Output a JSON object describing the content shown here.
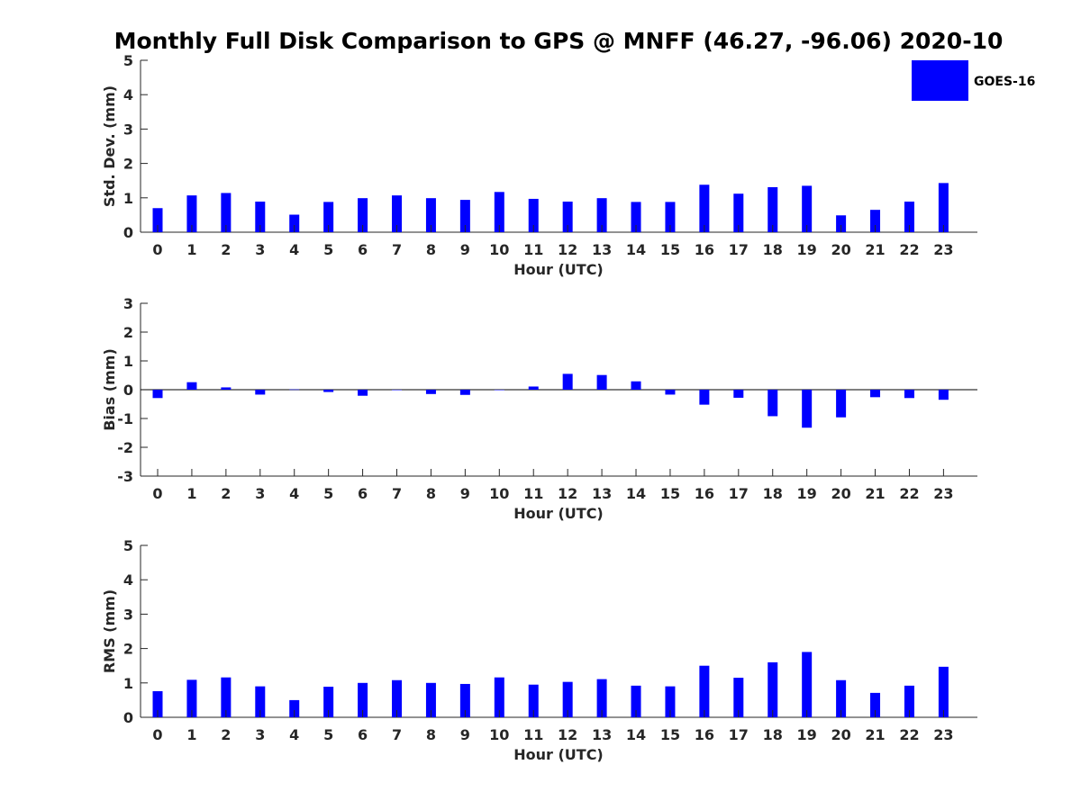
{
  "title": "Monthly Full Disk Comparison to GPS @ MNFF (46.27, -96.06) 2020-10",
  "colors": {
    "bar": "#0000ff",
    "axis": "#262626",
    "background": "#ffffff"
  },
  "chart_data": [
    {
      "type": "bar",
      "id": "stddev",
      "ylabel": "Std. Dev. (mm)",
      "xlabel": "Hour (UTC)",
      "ylim": [
        0,
        5
      ],
      "yticks": [
        "0",
        "1",
        "2",
        "3",
        "4",
        "5"
      ],
      "categories": [
        "0",
        "1",
        "2",
        "3",
        "4",
        "5",
        "6",
        "7",
        "8",
        "9",
        "10",
        "11",
        "12",
        "13",
        "14",
        "15",
        "16",
        "17",
        "18",
        "19",
        "20",
        "21",
        "22",
        "23"
      ],
      "series": [
        {
          "name": "GOES-16",
          "values": [
            0.7,
            1.07,
            1.14,
            0.89,
            0.51,
            0.88,
            0.99,
            1.07,
            0.99,
            0.94,
            1.17,
            0.97,
            0.89,
            0.99,
            0.88,
            0.88,
            1.38,
            1.12,
            1.31,
            1.35,
            0.49,
            0.65,
            0.89,
            1.43
          ]
        }
      ],
      "legend": {
        "label": "GOES-16",
        "position": "top-right"
      }
    },
    {
      "type": "bar",
      "id": "bias",
      "ylabel": "Bias (mm)",
      "xlabel": "Hour (UTC)",
      "ylim": [
        -3,
        3
      ],
      "yticks": [
        "-3",
        "-2",
        "-1",
        "0",
        "1",
        "2",
        "3"
      ],
      "zero_line": true,
      "categories": [
        "0",
        "1",
        "2",
        "3",
        "4",
        "5",
        "6",
        "7",
        "8",
        "9",
        "10",
        "11",
        "12",
        "13",
        "14",
        "15",
        "16",
        "17",
        "18",
        "19",
        "20",
        "21",
        "22",
        "23"
      ],
      "series": [
        {
          "name": "GOES-16",
          "values": [
            -0.29,
            0.26,
            0.08,
            -0.17,
            0.01,
            -0.08,
            -0.21,
            0.0,
            -0.15,
            -0.18,
            0.0,
            0.11,
            0.55,
            0.51,
            0.29,
            -0.17,
            -0.52,
            -0.28,
            -0.92,
            -1.32,
            -0.96,
            -0.26,
            -0.29,
            -0.35
          ]
        }
      ]
    },
    {
      "type": "bar",
      "id": "rms",
      "ylabel": "RMS (mm)",
      "xlabel": "Hour (UTC)",
      "ylim": [
        0,
        5
      ],
      "yticks": [
        "0",
        "1",
        "2",
        "3",
        "4",
        "5"
      ],
      "categories": [
        "0",
        "1",
        "2",
        "3",
        "4",
        "5",
        "6",
        "7",
        "8",
        "9",
        "10",
        "11",
        "12",
        "13",
        "14",
        "15",
        "16",
        "17",
        "18",
        "19",
        "20",
        "21",
        "22",
        "23"
      ],
      "series": [
        {
          "name": "GOES-16",
          "values": [
            0.76,
            1.09,
            1.16,
            0.9,
            0.5,
            0.89,
            1.0,
            1.08,
            1.0,
            0.97,
            1.16,
            0.95,
            1.03,
            1.11,
            0.92,
            0.9,
            1.5,
            1.15,
            1.6,
            1.9,
            1.08,
            0.71,
            0.92,
            1.47
          ]
        }
      ]
    }
  ]
}
